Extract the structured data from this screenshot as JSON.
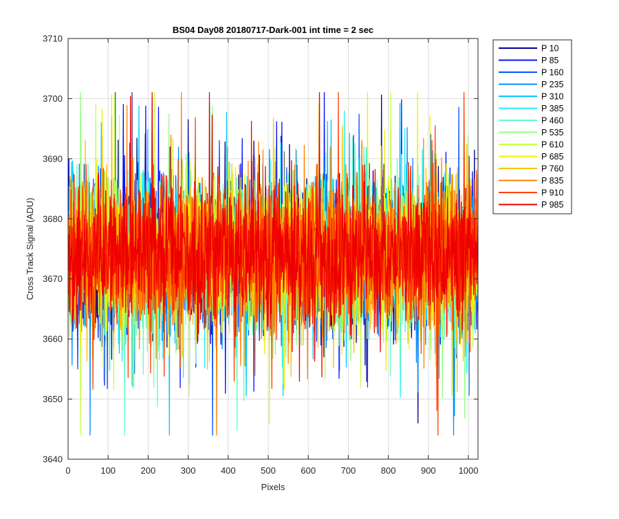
{
  "chart_data": {
    "type": "line",
    "title": "BS04 Day08 20180717-Dark-001 int time = 2 sec",
    "xlabel": "Pixels",
    "ylabel": "Cross Track Signal (ADU)",
    "xlim": [
      0,
      1024
    ],
    "ylim": [
      3640,
      3710
    ],
    "xticks": [
      0,
      100,
      200,
      300,
      400,
      500,
      600,
      700,
      800,
      900,
      1000
    ],
    "yticks": [
      3640,
      3650,
      3660,
      3670,
      3680,
      3690,
      3700,
      3710
    ],
    "grid": true,
    "legend_position": "outside-top-right",
    "n_points": 1024,
    "noise_model": {
      "mean": 3674,
      "spread_typical": 9,
      "min_observed": 3644,
      "max_observed": 3701
    },
    "series": [
      {
        "name": "P 10",
        "color": "#00008F",
        "seed": 11
      },
      {
        "name": "P 85",
        "color": "#0010FF",
        "seed": 23
      },
      {
        "name": "P 160",
        "color": "#0050FF",
        "seed": 37
      },
      {
        "name": "P 235",
        "color": "#0090FF",
        "seed": 41
      },
      {
        "name": "P 310",
        "color": "#00C8FF",
        "seed": 53
      },
      {
        "name": "P 385",
        "color": "#20F0F0",
        "seed": 67
      },
      {
        "name": "P 460",
        "color": "#60FFC0",
        "seed": 71
      },
      {
        "name": "P 535",
        "color": "#90FF80",
        "seed": 83
      },
      {
        "name": "P 610",
        "color": "#C8FF40",
        "seed": 97
      },
      {
        "name": "P 685",
        "color": "#F0F000",
        "seed": 101
      },
      {
        "name": "P 760",
        "color": "#FFC000",
        "seed": 113
      },
      {
        "name": "P 835",
        "color": "#FF8000",
        "seed": 127
      },
      {
        "name": "P 910",
        "color": "#FF4000",
        "seed": 131
      },
      {
        "name": "P 985",
        "color": "#EE0000",
        "seed": 139
      }
    ]
  }
}
